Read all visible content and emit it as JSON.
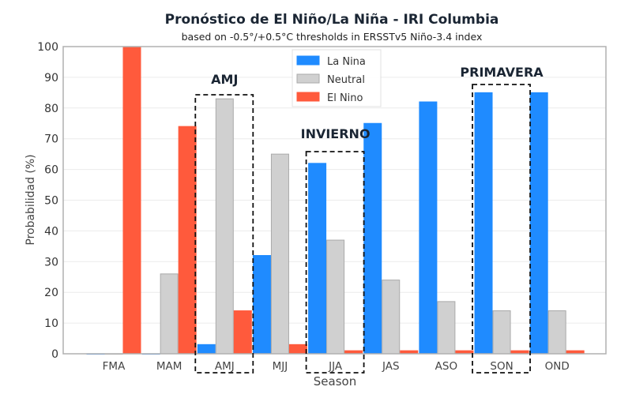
{
  "chart_data": {
    "type": "bar",
    "title": "Pronóstico de El Niño/La Niña - IRI Columbia",
    "subtitle": "based on -0.5°/+0.5°C thresholds in ERSSTv5 Niño-3.4 index",
    "xlabel": "Season",
    "ylabel": "Probabilidad (%)",
    "ylim": [
      0,
      100
    ],
    "yticks": [
      0,
      10,
      20,
      30,
      40,
      50,
      60,
      70,
      80,
      90,
      100
    ],
    "grid": true,
    "legend_position": "top-center",
    "categories": [
      "FMA",
      "MAM",
      "AMJ",
      "MJJ",
      "JJA",
      "JAS",
      "ASO",
      "SON",
      "OND"
    ],
    "series": [
      {
        "name": "La Nina",
        "color": "#1f8bff",
        "values": [
          0,
          0,
          3,
          32,
          62,
          75,
          82,
          85,
          85
        ]
      },
      {
        "name": "Neutral",
        "color": "#d0d0d0",
        "values": [
          0,
          26,
          83,
          65,
          37,
          24,
          17,
          14,
          14
        ]
      },
      {
        "name": "El Nino",
        "color": "#ff5a3c",
        "values": [
          100,
          74,
          14,
          3,
          1,
          1,
          1,
          1,
          1
        ]
      }
    ],
    "annotations": [
      {
        "text": "AMJ",
        "category": "AMJ"
      },
      {
        "text": "INVIERNO",
        "category": "JJA"
      },
      {
        "text": "PRIMAVERA",
        "category": "SON"
      }
    ]
  }
}
